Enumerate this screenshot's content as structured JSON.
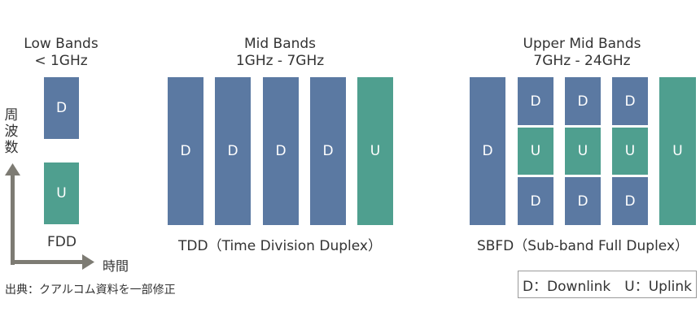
{
  "colors": {
    "downlink": "#5b79a2",
    "uplink": "#4f9f8f",
    "axis": "#7d7b73"
  },
  "low_bands": {
    "title": "Low Bands",
    "subtitle": "< 1GHz",
    "caption": "FDD",
    "blocks": [
      "D",
      "U"
    ]
  },
  "mid_bands": {
    "title": "Mid Bands",
    "subtitle": "1GHz - 7GHz",
    "caption": "TDD（Time Division Duplex）",
    "blocks": [
      "D",
      "D",
      "D",
      "D",
      "U"
    ]
  },
  "upper_mid_bands": {
    "title": "Upper Mid Bands",
    "subtitle": "7GHz - 24GHz",
    "caption": "SBFD（Sub-band Full Duplex）",
    "left": "D",
    "grid": [
      [
        "D",
        "D",
        "D"
      ],
      [
        "U",
        "U",
        "U"
      ],
      [
        "D",
        "D",
        "D"
      ]
    ],
    "right": "U"
  },
  "axes": {
    "frequency_label": [
      "周",
      "波",
      "数"
    ],
    "time_label": "時間"
  },
  "legend": "D：Downlink　U：Uplink",
  "source": "出典：クアルコム資料を一部修正"
}
